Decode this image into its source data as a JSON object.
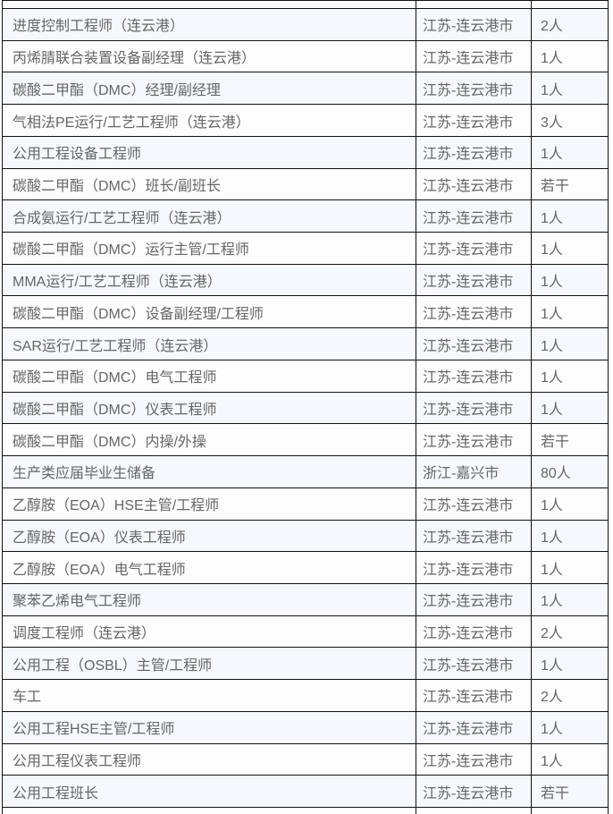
{
  "colors": {
    "border": "#111111",
    "row_tint": "#f5f8fd",
    "row_plain": "#fdfdfd",
    "text": "#666666",
    "page_background": "#ffffff"
  },
  "table": {
    "rows": [
      {
        "title": "进度控制工程师（连云港）",
        "location": "江苏-连云港市",
        "headcount": "2人"
      },
      {
        "title": "丙烯腈联合装置设备副经理（连云港）",
        "location": "江苏-连云港市",
        "headcount": "1人"
      },
      {
        "title": "碳酸二甲酯（DMC）经理/副经理",
        "location": "江苏-连云港市",
        "headcount": "1人"
      },
      {
        "title": "气相法PE运行/工艺工程师（连云港）",
        "location": "江苏-连云港市",
        "headcount": "3人"
      },
      {
        "title": "公用工程设备工程师",
        "location": "江苏-连云港市",
        "headcount": "1人"
      },
      {
        "title": "碳酸二甲酯（DMC）班长/副班长",
        "location": "江苏-连云港市",
        "headcount": "若干"
      },
      {
        "title": "合成氨运行/工艺工程师（连云港）",
        "location": "江苏-连云港市",
        "headcount": "1人"
      },
      {
        "title": "碳酸二甲酯（DMC）运行主管/工程师",
        "location": "江苏-连云港市",
        "headcount": "1人"
      },
      {
        "title": "MMA运行/工艺工程师（连云港）",
        "location": "江苏-连云港市",
        "headcount": "1人"
      },
      {
        "title": "碳酸二甲酯（DMC）设备副经理/工程师",
        "location": "江苏-连云港市",
        "headcount": "1人"
      },
      {
        "title": "SAR运行/工艺工程师（连云港）",
        "location": "江苏-连云港市",
        "headcount": "1人"
      },
      {
        "title": "碳酸二甲酯（DMC）电气工程师",
        "location": "江苏-连云港市",
        "headcount": "1人"
      },
      {
        "title": "碳酸二甲酯（DMC）仪表工程师",
        "location": "江苏-连云港市",
        "headcount": "1人"
      },
      {
        "title": "碳酸二甲酯（DMC）内操/外操",
        "location": "江苏-连云港市",
        "headcount": "若干"
      },
      {
        "title": "生产类应届毕业生储备",
        "location": "浙江-嘉兴市",
        "headcount": "80人"
      },
      {
        "title": "乙醇胺（EOA）HSE主管/工程师",
        "location": "江苏-连云港市",
        "headcount": "1人"
      },
      {
        "title": "乙醇胺（EOA）仪表工程师",
        "location": "江苏-连云港市",
        "headcount": "1人"
      },
      {
        "title": "乙醇胺（EOA）电气工程师",
        "location": "江苏-连云港市",
        "headcount": "1人"
      },
      {
        "title": "聚苯乙烯电气工程师",
        "location": "江苏-连云港市",
        "headcount": "1人"
      },
      {
        "title": "调度工程师（连云港）",
        "location": "江苏-连云港市",
        "headcount": "2人"
      },
      {
        "title": "公用工程（OSBL）主管/工程师",
        "location": "江苏-连云港市",
        "headcount": "1人"
      },
      {
        "title": "车工",
        "location": "江苏-连云港市",
        "headcount": "2人"
      },
      {
        "title": "公用工程HSE主管/工程师",
        "location": "江苏-连云港市",
        "headcount": "1人"
      },
      {
        "title": "公用工程仪表工程师",
        "location": "江苏-连云港市",
        "headcount": "1人"
      },
      {
        "title": "公用工程班长",
        "location": "江苏-连云港市",
        "headcount": "若干"
      }
    ]
  }
}
